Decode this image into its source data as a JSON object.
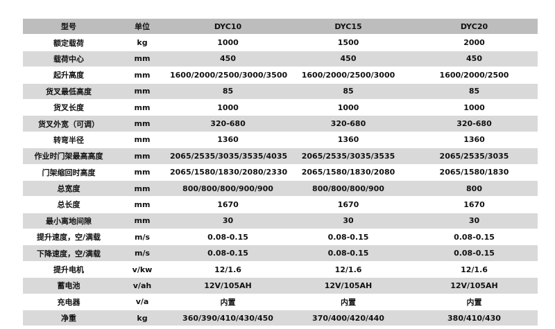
{
  "header": [
    "型号",
    "单位",
    "DYC10",
    "DYC15",
    "DYC20"
  ],
  "rows": [
    [
      "额定载荷",
      "kg",
      "1000",
      "1500",
      "2000"
    ],
    [
      "载荷中心",
      "mm",
      "450",
      "450",
      "450"
    ],
    [
      "起升高度",
      "mm",
      "1600/2000/2500/3000/3500",
      "1600/2000/2500/3000",
      "1600/2000/2500"
    ],
    [
      "货叉最低高度",
      "mm",
      "85",
      "85",
      "85"
    ],
    [
      "货叉长度",
      "mm",
      "1000",
      "1000",
      "1000"
    ],
    [
      "货叉外宽（可调）",
      "mm",
      "320-680",
      "320-680",
      "320-680"
    ],
    [
      "转弯半径",
      "mm",
      "1360",
      "1360",
      "1360"
    ],
    [
      "作业时门架最高高度",
      "mm",
      "2065/2535/3035/3535/4035",
      "2065/2535/3035/3535",
      "2065/2535/3035"
    ],
    [
      "门架缩回时高度",
      "mm",
      "2065/1580/1830/2080/2330",
      "2065/1580/1830/2080",
      "2065/1580/1830"
    ],
    [
      "总宽度",
      "mm",
      "800/800/800/900/900",
      "800/800/800/900",
      "800"
    ],
    [
      "总长度",
      "mm",
      "1670",
      "1670",
      "1670"
    ],
    [
      "最小离地间隙",
      "mm",
      "30",
      "30",
      "30"
    ],
    [
      "提升速度，空/满载",
      "m/s",
      "0.08-0.15",
      "0.08-0.15",
      "0.08-0.15"
    ],
    [
      "下降速度，空/满载",
      "m/s",
      "0.08-0.15",
      "0.08-0.15",
      "0.08-0.15"
    ],
    [
      "提升电机",
      "v/kw",
      "12/1.6",
      "12/1.6",
      "12/1.6"
    ],
    [
      "蓄电池",
      "v/ah",
      "12V/105AH",
      "12V/105AH",
      "12V/105AH"
    ],
    [
      "充电器",
      "v/a",
      "内置",
      "内置",
      "内置"
    ],
    [
      "净重",
      "kg",
      "360/390/410/430/450",
      "370/400/420/440",
      "380/410/430"
    ]
  ],
  "colors": {
    "header_bg": "#bdbdbd",
    "stripe_bg": "#d9d9d9"
  }
}
